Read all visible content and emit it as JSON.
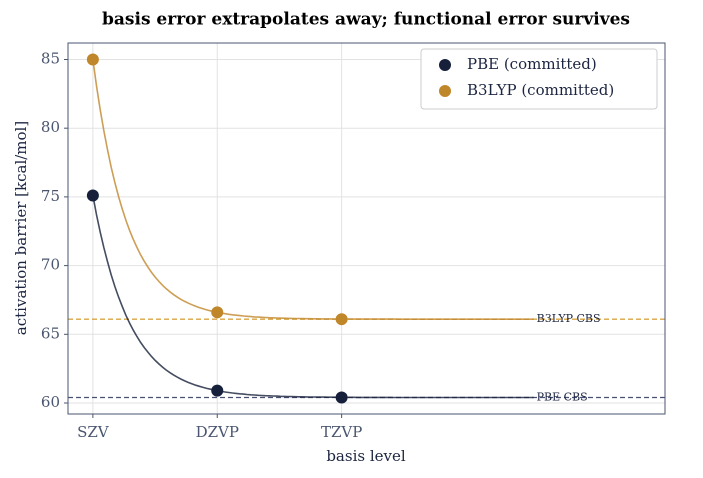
{
  "chart_data": {
    "type": "scatter",
    "title": "basis error extrapolates away; functional error survives",
    "x_label": "basis level",
    "y_label": "activation barrier  [kcal/mol]",
    "x": [
      0,
      1,
      2
    ],
    "xlim": [
      -0.2,
      4.6
    ],
    "xticks": [
      {
        "value": 0,
        "label": "SZV"
      },
      {
        "value": 1,
        "label": "DZVP"
      },
      {
        "value": 2,
        "label": "TZVP"
      }
    ],
    "ylim": [
      59.2,
      86.2
    ],
    "yticks": [
      60,
      65,
      70,
      75,
      80,
      85
    ],
    "grid": true,
    "legend": "upper right",
    "series": [
      {
        "name": "PBE (committed)",
        "color": "#16203a",
        "values": [
          75.1,
          60.9,
          60.4
        ]
      },
      {
        "name": "B3LYP (committed)",
        "color": "#c0862a",
        "values": [
          85.0,
          66.6,
          66.1
        ]
      }
    ],
    "reference_lines": [
      {
        "name": "PBE CBS",
        "value": 60.4,
        "color": "#4a4f75"
      },
      {
        "name": "B3LYP CBS",
        "value": 66.1,
        "color": "#d9a543"
      }
    ]
  }
}
